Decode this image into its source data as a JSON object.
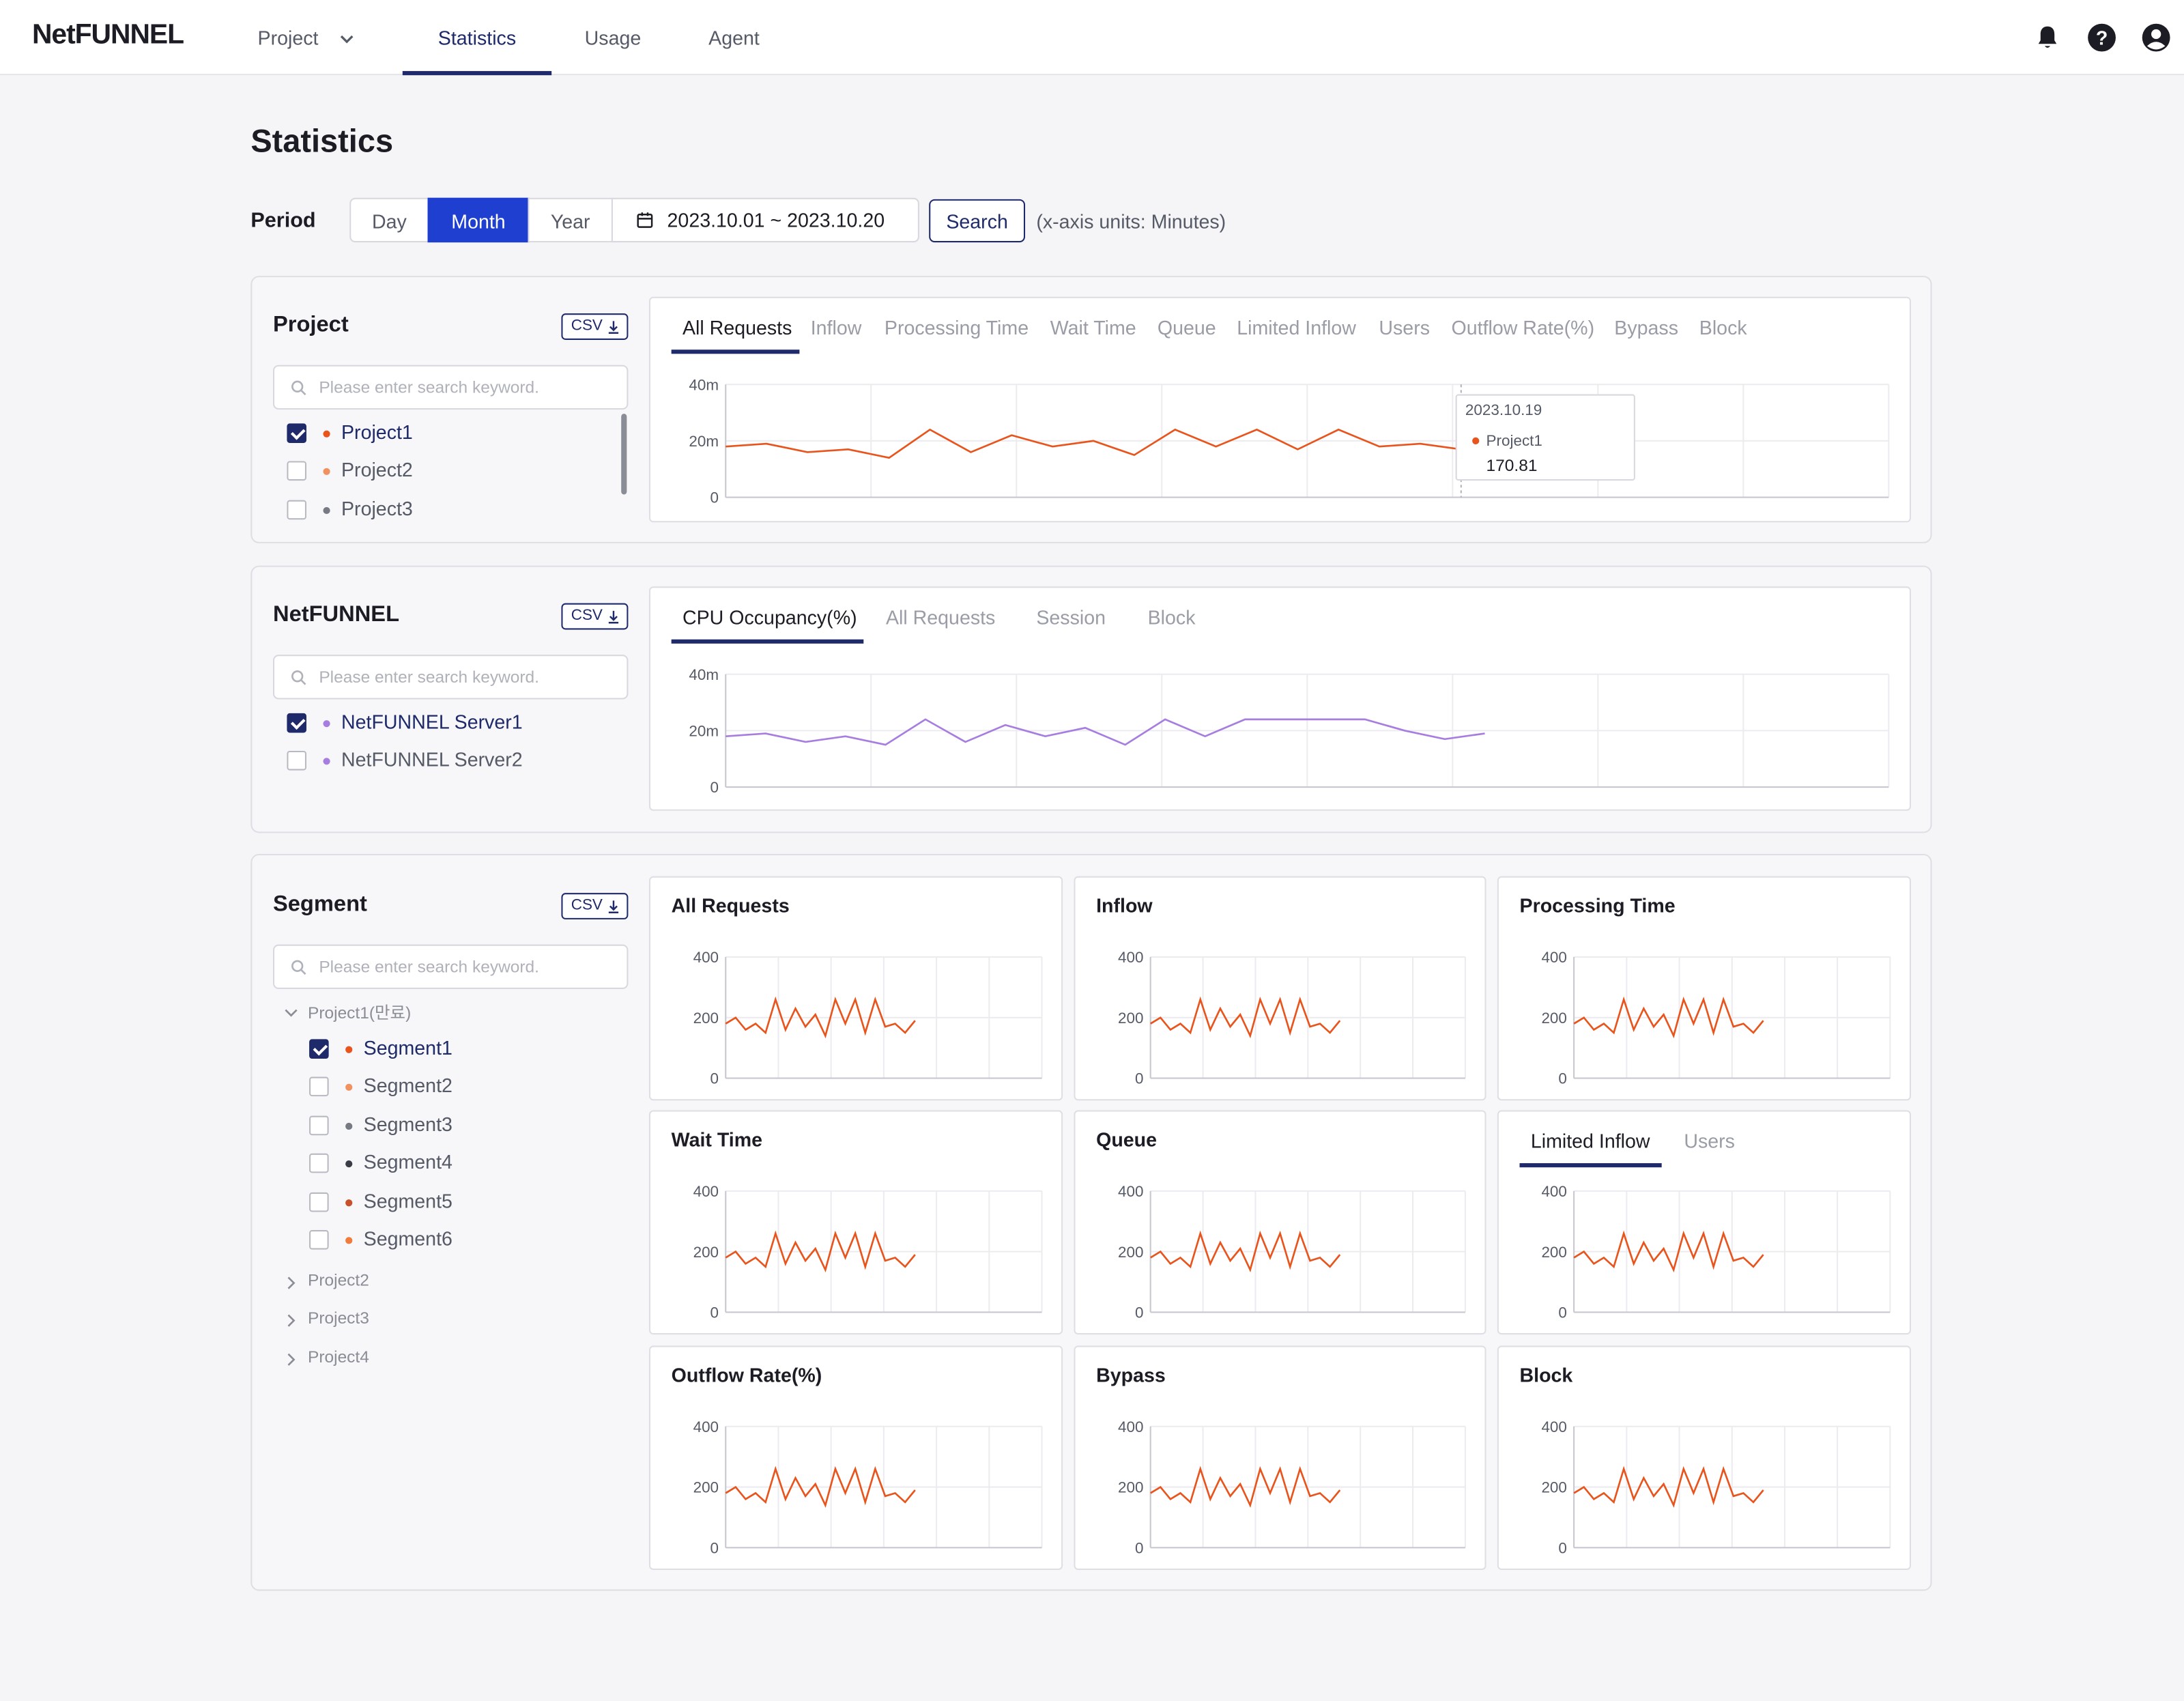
{
  "app": {
    "logo": "NetFUNNEL"
  },
  "nav": {
    "items": [
      {
        "label": "Project"
      },
      {
        "label": "Statistics"
      },
      {
        "label": "Usage"
      },
      {
        "label": "Agent"
      }
    ],
    "active": "Statistics",
    "icons": [
      "bell-icon",
      "help-icon",
      "account-icon"
    ]
  },
  "page": {
    "title": "Statistics"
  },
  "period": {
    "label": "Period",
    "options": [
      "Day",
      "Month",
      "Year"
    ],
    "selected": "Month",
    "date_range": "2023.10.01 ~ 2023.10.20",
    "search_label": "Search",
    "note": "(x-axis units: Minutes)"
  },
  "colors": {
    "brand": "#1f2a6b",
    "accent": "#1f3fd1",
    "series_orange": "#e8541c",
    "series_purple": "#a77de0"
  },
  "project_panel": {
    "title": "Project",
    "csv_label": "CSV",
    "search_placeholder": "Please enter search keyword.",
    "items": [
      {
        "label": "Project1",
        "checked": true,
        "color": "#e8541c"
      },
      {
        "label": "Project2",
        "checked": false,
        "color": "#f0915f"
      },
      {
        "label": "Project3",
        "checked": false,
        "color": "#777a82"
      }
    ],
    "tabs": [
      "All Requests",
      "Inflow",
      "Processing Time",
      "Wait Time",
      "Queue",
      "Limited Inflow",
      "Users",
      "Outflow Rate(%)",
      "Bypass",
      "Block"
    ],
    "active_tab": "All Requests",
    "tooltip": {
      "date": "2023.10.19",
      "series": "Project1",
      "value": "170.81"
    },
    "chart": {
      "y_ticks": [
        "40m",
        "20m",
        "0"
      ]
    }
  },
  "netfunnel_panel": {
    "title": "NetFUNNEL",
    "csv_label": "CSV",
    "search_placeholder": "Please enter search keyword.",
    "items": [
      {
        "label": "NetFUNNEL Server1",
        "checked": true,
        "color": "#a77de0"
      },
      {
        "label": "NetFUNNEL Server2",
        "checked": false,
        "color": "#a77de0"
      }
    ],
    "tabs": [
      "CPU Occupancy(%)",
      "All Requests",
      "Session",
      "Block"
    ],
    "active_tab": "CPU Occupancy(%)",
    "chart": {
      "y_ticks": [
        "40m",
        "20m",
        "0"
      ]
    }
  },
  "segment_panel": {
    "title": "Segment",
    "csv_label": "CSV",
    "search_placeholder": "Please enter search keyword.",
    "tree": {
      "expanded_project": "Project1(만료)",
      "segments": [
        {
          "label": "Segment1",
          "checked": true,
          "color": "#e8541c"
        },
        {
          "label": "Segment2",
          "checked": false,
          "color": "#f0915f"
        },
        {
          "label": "Segment3",
          "checked": false,
          "color": "#777a82"
        },
        {
          "label": "Segment4",
          "checked": false,
          "color": "#3a3d45"
        },
        {
          "label": "Segment5",
          "checked": false,
          "color": "#c8502a"
        },
        {
          "label": "Segment6",
          "checked": false,
          "color": "#f07b3a"
        }
      ],
      "collapsed_projects": [
        "Project2",
        "Project3",
        "Project4"
      ]
    },
    "cards": [
      {
        "title": "All Requests"
      },
      {
        "title": "Inflow"
      },
      {
        "title": "Processing Time"
      },
      {
        "title": "Wait Time"
      },
      {
        "title": "Queue"
      },
      {
        "tabs": [
          "Limited Inflow",
          "Users"
        ],
        "active_tab": "Limited Inflow"
      },
      {
        "title": "Outflow Rate(%)"
      },
      {
        "title": "Bypass"
      },
      {
        "title": "Block"
      }
    ],
    "mini_y_ticks": [
      "400",
      "200",
      "0"
    ]
  },
  "chart_data": [
    {
      "type": "line",
      "panel": "Project",
      "metric": "All Requests",
      "ylim_labels": [
        "0",
        "20m",
        "40m"
      ],
      "series": [
        {
          "name": "Project1",
          "color": "#e8541c",
          "values": [
            18,
            19,
            16,
            17,
            14,
            24,
            16,
            22,
            18,
            20,
            15,
            24,
            18,
            24,
            17,
            24,
            18,
            19,
            17,
            17
          ]
        }
      ]
    },
    {
      "type": "line",
      "panel": "NetFUNNEL",
      "metric": "CPU Occupancy(%)",
      "ylim_labels": [
        "0",
        "20m",
        "40m"
      ],
      "series": [
        {
          "name": "NetFUNNEL Server1",
          "color": "#a77de0",
          "values": [
            18,
            19,
            16,
            18,
            15,
            24,
            16,
            22,
            18,
            21,
            15,
            24,
            18,
            24,
            24,
            24,
            24,
            20,
            17,
            19
          ]
        }
      ]
    },
    {
      "type": "line",
      "panel": "Segment",
      "metric": "mini charts (9)",
      "ylim": [
        0,
        400
      ],
      "series": [
        {
          "name": "Segment1",
          "color": "#e8541c",
          "values": [
            180,
            200,
            160,
            180,
            150,
            260,
            160,
            230,
            170,
            210,
            140,
            260,
            180,
            260,
            150,
            260,
            170,
            180,
            150,
            190
          ]
        }
      ]
    }
  ]
}
